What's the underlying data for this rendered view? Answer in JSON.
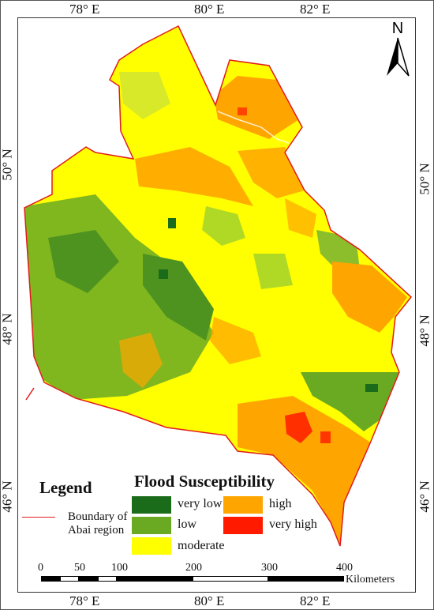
{
  "map": {
    "longitude_labels_top": [
      "78° E",
      "80° E",
      "82° E"
    ],
    "longitude_labels_bottom": [
      "78° E",
      "80° E",
      "82° E"
    ],
    "latitude_labels_left": [
      "50° N",
      "48° N",
      "46° N"
    ],
    "latitude_labels_right": [
      "50° N",
      "48° N",
      "46° N"
    ],
    "north_arrow_label": "N",
    "boundary_color": "#e21b1b"
  },
  "legend": {
    "title": "Legend",
    "susceptibility_title": "Flood Susceptibility",
    "classes": [
      {
        "label": "very low",
        "color": "#1a6b1a"
      },
      {
        "label": "low",
        "color": "#6aaa23"
      },
      {
        "label": "moderate",
        "color": "#ffff00"
      },
      {
        "label": "high",
        "color": "#ffa500"
      },
      {
        "label": "very high",
        "color": "#ff1a00"
      }
    ],
    "boundary_label_line1": "Boundary of",
    "boundary_label_line2": "Abai region"
  },
  "scale_bar": {
    "ticks": [
      "0",
      "50",
      "100",
      "200",
      "300",
      "400"
    ],
    "unit": "Kilometers"
  }
}
